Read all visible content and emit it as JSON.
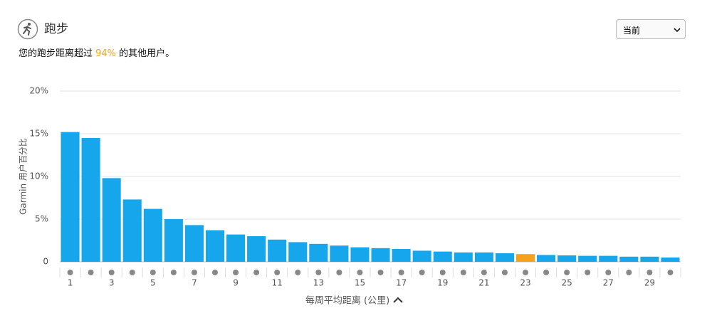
{
  "header": {
    "title": "跑步",
    "summary": [
      "您的跑步距离超过 ",
      "94%",
      " 的其他用户。"
    ],
    "highlight_color": "#f5a11c",
    "select": "当前"
  },
  "chart_data": {
    "type": "bar",
    "categories": [
      "1",
      null,
      "3",
      null,
      "5",
      null,
      "7",
      null,
      "9",
      null,
      "11",
      null,
      "13",
      null,
      "15",
      null,
      "17",
      null,
      "19",
      null,
      "21",
      null,
      "23",
      null,
      "25",
      null,
      "27",
      null,
      "29",
      null
    ],
    "values": [
      15.2,
      14.5,
      9.8,
      7.3,
      6.2,
      5.0,
      4.3,
      3.7,
      3.2,
      3.0,
      2.6,
      2.3,
      2.1,
      1.9,
      1.7,
      1.6,
      1.5,
      1.3,
      1.2,
      1.1,
      1.1,
      1.0,
      0.9,
      0.8,
      0.75,
      0.7,
      0.7,
      0.6,
      0.6,
      0.5
    ],
    "colors": [
      "#15a6ec",
      "#15a6ec",
      "#15a6ec",
      "#15a6ec",
      "#15a6ec",
      "#15a6ec",
      "#15a6ec",
      "#15a6ec",
      "#15a6ec",
      "#15a6ec",
      "#15a6ec",
      "#15a6ec",
      "#15a6ec",
      "#15a6ec",
      "#15a6ec",
      "#15a6ec",
      "#15a6ec",
      "#15a6ec",
      "#15a6ec",
      "#15a6ec",
      "#15a6ec",
      "#15a6ec",
      "#f5a11c",
      "#15a6ec",
      "#15a6ec",
      "#15a6ec",
      "#15a6ec",
      "#15a6ec",
      "#15a6ec",
      "#15a6ec"
    ],
    "ylim": [
      0,
      20
    ],
    "yticks": [
      0,
      {
        "value": 5,
        "label": "5%"
      },
      {
        "value": 10,
        "label": "10%"
      },
      {
        "value": 15,
        "label": "15%"
      },
      {
        "value": 20,
        "label": "20%"
      }
    ],
    "y_label": "Garmin 用户百分比",
    "x_label": "每周平均距离 (公里)",
    "grid": true
  }
}
